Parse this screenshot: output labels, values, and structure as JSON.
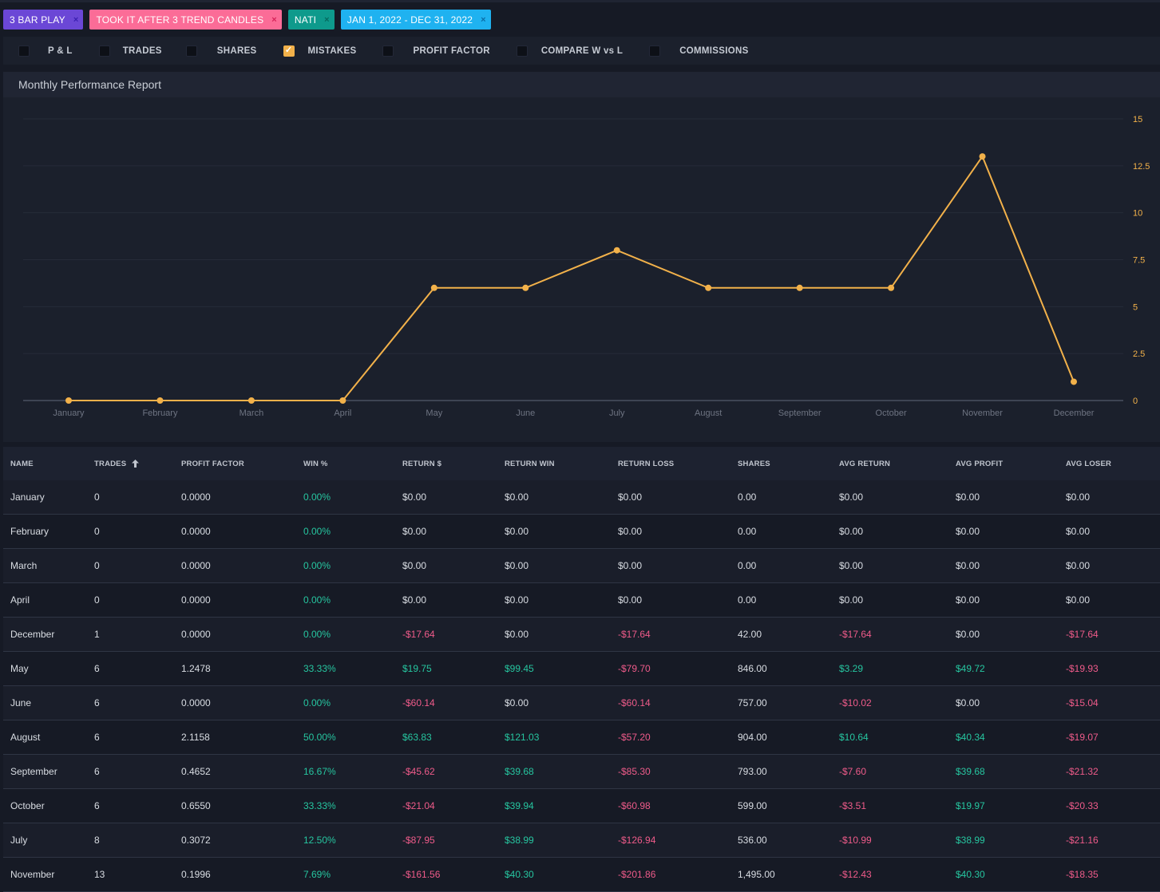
{
  "filters": [
    {
      "label": "3 BAR PLAY",
      "color": "#6b47d6",
      "close": "×"
    },
    {
      "label": "TOOK IT AFTER 3 TREND CANDLES",
      "color": "#fb6c97",
      "close": "×"
    },
    {
      "label": "NATI",
      "color": "#0e9a8c",
      "close": "×"
    },
    {
      "label": "JAN 1, 2022 - DEC 31, 2022",
      "color": "#1fb2f0",
      "close": "×"
    }
  ],
  "toggles": [
    {
      "label": "P & L",
      "checked": false
    },
    {
      "label": "TRADES",
      "checked": false
    },
    {
      "label": "SHARES",
      "checked": false
    },
    {
      "label": "MISTAKES",
      "checked": true
    },
    {
      "label": "PROFIT FACTOR",
      "checked": false
    },
    {
      "label": "COMPARE W vs L",
      "checked": false
    },
    {
      "label": "COMMISSIONS",
      "checked": false
    }
  ],
  "chart": {
    "title": "Monthly Performance Report"
  },
  "chart_data": {
    "type": "line",
    "categories": [
      "January",
      "February",
      "March",
      "April",
      "May",
      "June",
      "July",
      "August",
      "September",
      "October",
      "November",
      "December"
    ],
    "series": [
      {
        "values": [
          0,
          0,
          0,
          0,
          6,
          6,
          8,
          6,
          6,
          6,
          13,
          1
        ]
      }
    ],
    "yticks": [
      "0",
      "2.5",
      "5",
      "7.5",
      "10",
      "12.5",
      "15"
    ],
    "ylim": [
      0,
      15
    ],
    "y_axis_side": "right",
    "grid": true,
    "line_color": "#f2b14a"
  },
  "table": {
    "headers": [
      "NAME",
      "TRADES",
      "PROFIT FACTOR",
      "WIN %",
      "RETURN $",
      "RETURN WIN",
      "RETURN LOSS",
      "SHARES",
      "AVG RETURN",
      "AVG PROFIT",
      "AVG LOSER"
    ],
    "sort_icon": "arrow-up-icon",
    "rows": [
      [
        "January",
        "0",
        "0.0000",
        "0.00%",
        "$0.00",
        "$0.00",
        "$0.00",
        "0.00",
        "$0.00",
        "$0.00",
        "$0.00"
      ],
      [
        "February",
        "0",
        "0.0000",
        "0.00%",
        "$0.00",
        "$0.00",
        "$0.00",
        "0.00",
        "$0.00",
        "$0.00",
        "$0.00"
      ],
      [
        "March",
        "0",
        "0.0000",
        "0.00%",
        "$0.00",
        "$0.00",
        "$0.00",
        "0.00",
        "$0.00",
        "$0.00",
        "$0.00"
      ],
      [
        "April",
        "0",
        "0.0000",
        "0.00%",
        "$0.00",
        "$0.00",
        "$0.00",
        "0.00",
        "$0.00",
        "$0.00",
        "$0.00"
      ],
      [
        "December",
        "1",
        "0.0000",
        "0.00%",
        "-$17.64",
        "$0.00",
        "-$17.64",
        "42.00",
        "-$17.64",
        "$0.00",
        "-$17.64"
      ],
      [
        "May",
        "6",
        "1.2478",
        "33.33%",
        "$19.75",
        "$99.45",
        "-$79.70",
        "846.00",
        "$3.29",
        "$49.72",
        "-$19.93"
      ],
      [
        "June",
        "6",
        "0.0000",
        "0.00%",
        "-$60.14",
        "$0.00",
        "-$60.14",
        "757.00",
        "-$10.02",
        "$0.00",
        "-$15.04"
      ],
      [
        "August",
        "6",
        "2.1158",
        "50.00%",
        "$63.83",
        "$121.03",
        "-$57.20",
        "904.00",
        "$10.64",
        "$40.34",
        "-$19.07"
      ],
      [
        "September",
        "6",
        "0.4652",
        "16.67%",
        "-$45.62",
        "$39.68",
        "-$85.30",
        "793.00",
        "-$7.60",
        "$39.68",
        "-$21.32"
      ],
      [
        "October",
        "6",
        "0.6550",
        "33.33%",
        "-$21.04",
        "$39.94",
        "-$60.98",
        "599.00",
        "-$3.51",
        "$19.97",
        "-$20.33"
      ],
      [
        "July",
        "8",
        "0.3072",
        "12.50%",
        "-$87.95",
        "$38.99",
        "-$126.94",
        "536.00",
        "-$10.99",
        "$38.99",
        "-$21.16"
      ],
      [
        "November",
        "13",
        "0.1996",
        "7.69%",
        "-$161.56",
        "$40.30",
        "-$201.86",
        "1,495.00",
        "-$12.43",
        "$40.30",
        "-$18.35"
      ]
    ]
  }
}
